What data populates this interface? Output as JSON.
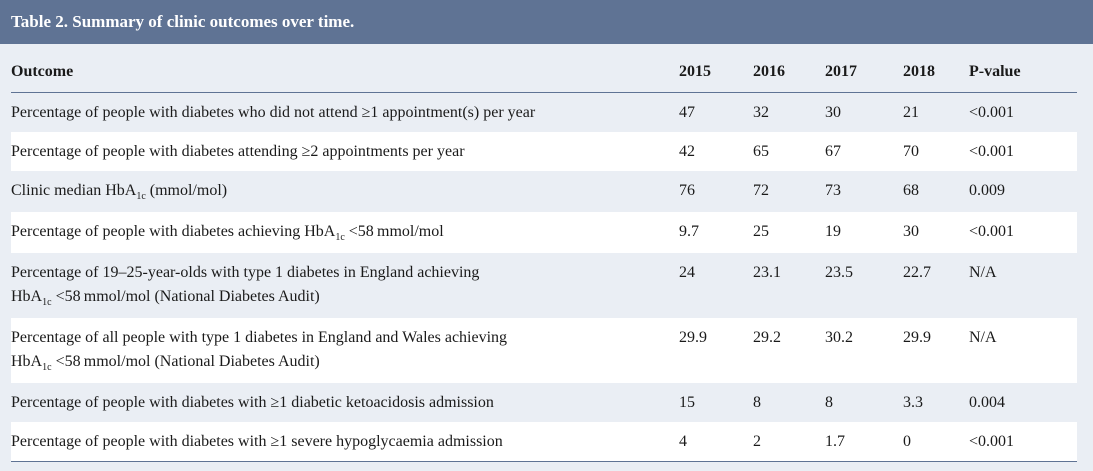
{
  "title": "Table 2. Summary of clinic outcomes over time.",
  "headers": [
    "Outcome",
    "2015",
    "2016",
    "2017",
    "2018",
    "P-value"
  ],
  "rows": [
    {
      "outcome_a": "Percentage of people with diabetes who did not attend ≥1 appointment(s) per year",
      "values": [
        "47",
        "32",
        "30",
        "21",
        "<0.001"
      ]
    },
    {
      "outcome_a": "Percentage of people with diabetes attending ≥2 appointments per year",
      "values": [
        "42",
        "65",
        "67",
        "70",
        "<0.001"
      ]
    },
    {
      "outcome_a": "Clinic median HbA",
      "sub": "1c",
      "outcome_b": " (mmol/mol)",
      "values": [
        "76",
        "72",
        "73",
        "68",
        "0.009"
      ]
    },
    {
      "outcome_a": "Percentage of people with diabetes achieving HbA",
      "sub": "1c",
      "outcome_b": " <58 mmol/mol",
      "values": [
        "9.7",
        "25",
        "19",
        "30",
        "<0.001"
      ]
    },
    {
      "outcome_a": "Percentage of 19–25-year-olds with type 1 diabetes in England achieving",
      "outcome_a2": "HbA",
      "sub": "1c",
      "outcome_b": " <58 mmol/mol (National Diabetes Audit)",
      "values": [
        "24",
        "23.1",
        "23.5",
        "22.7",
        "N/A"
      ]
    },
    {
      "outcome_a": "Percentage of all people with type 1 diabetes in England and Wales achieving",
      "outcome_a2": "HbA",
      "sub": "1c",
      "outcome_b": " <58 mmol/mol (National Diabetes Audit)",
      "values": [
        "29.9",
        "29.2",
        "30.2",
        "29.9",
        "N/A"
      ]
    },
    {
      "outcome_a": "Percentage of people with diabetes with ≥1 diabetic ketoacidosis admission",
      "values": [
        "15",
        "8",
        "8",
        "3.3",
        "0.004"
      ]
    },
    {
      "outcome_a": "Percentage of people with diabetes with ≥1 severe hypoglycaemia admission",
      "values": [
        "4",
        "2",
        "1.7",
        "0",
        "<0.001"
      ]
    }
  ],
  "colors": {
    "title_bar": "#5f7394",
    "background": "#eaeef4",
    "alt_row": "#ffffff"
  }
}
